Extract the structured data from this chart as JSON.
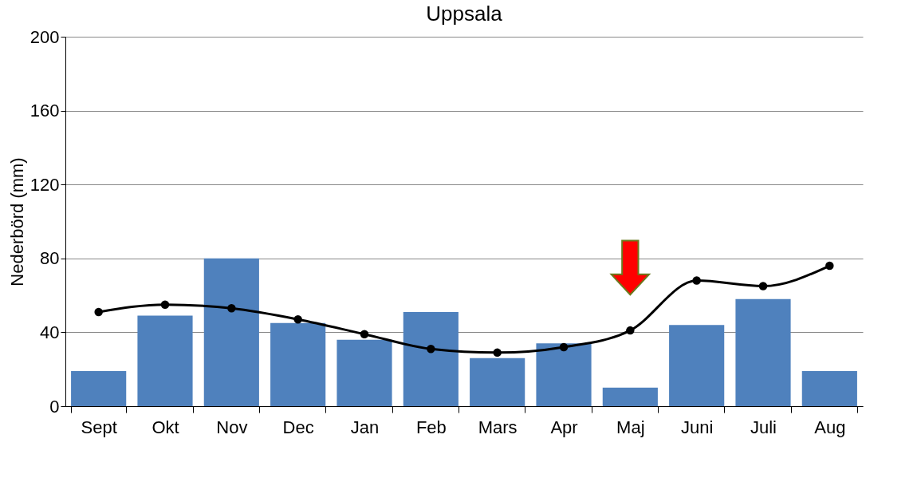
{
  "chart_data": {
    "type": "bar",
    "title": "Uppsala",
    "ylabel": "Nederbörd (mm)",
    "categories": [
      "Sept",
      "Okt",
      "Nov",
      "Dec",
      "Jan",
      "Feb",
      "Mars",
      "Apr",
      "Maj",
      "Juni",
      "Juli",
      "Aug"
    ],
    "series": [
      {
        "color": "#4f81bd",
        "values": [
          19,
          49,
          80,
          45,
          36,
          51,
          26,
          34,
          10,
          44,
          58,
          19
        ]
      },
      {
        "type": "line",
        "color": "#000000",
        "marker": "circle",
        "values": [
          51,
          55,
          53,
          47,
          39,
          31,
          29,
          32,
          41,
          68,
          65,
          76
        ]
      }
    ],
    "ylim": [
      0,
      200
    ],
    "yticks": [
      0,
      40,
      80,
      120,
      160,
      200
    ],
    "grid": "y"
  }
}
